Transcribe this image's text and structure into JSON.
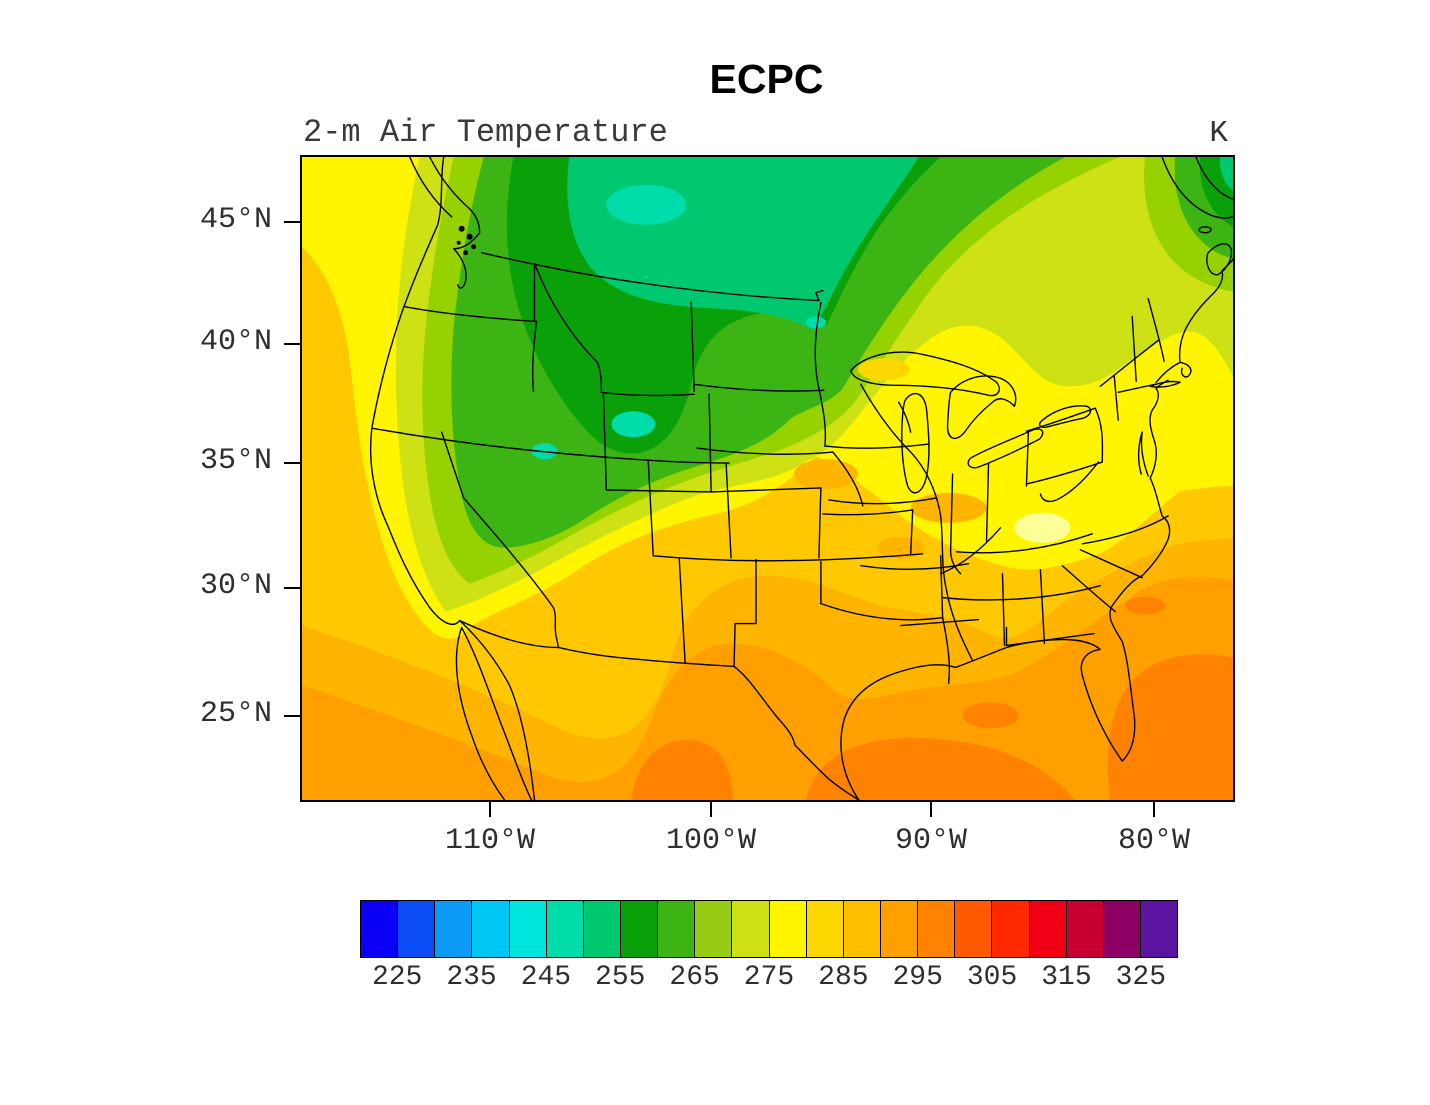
{
  "title": "ECPC",
  "subtitle": "2-m Air Temperature",
  "units_label": "K",
  "axes": {
    "y_ticks": [
      "45°N",
      "40°N",
      "35°N",
      "30°N",
      "25°N"
    ],
    "x_ticks": [
      "110°W",
      "100°W",
      "90°W",
      "80°W"
    ]
  },
  "colorbar": {
    "tick_labels": [
      "225",
      "235",
      "245",
      "255",
      "265",
      "275",
      "285",
      "295",
      "305",
      "315",
      "325"
    ],
    "min_value": 220,
    "max_value": 330,
    "interval_K": 5,
    "segment_colors": [
      "#0b00f5",
      "#0b4df5",
      "#0b9af5",
      "#00c8f5",
      "#00e6dc",
      "#00dcaa",
      "#00c86e",
      "#0aa00a",
      "#3cb414",
      "#96cd14",
      "#cde114",
      "#fff500",
      "#ffd700",
      "#ffbe00",
      "#ffa000",
      "#ff8200",
      "#ff5a00",
      "#ff2800",
      "#f00014",
      "#c80032",
      "#8c0064",
      "#5a14a0"
    ]
  },
  "chart_data": {
    "type": "heatmap",
    "subtype": "filled-contour-map",
    "title": "ECPC",
    "subtitle": "2-m Air Temperature",
    "units": "K",
    "region": "Continental United States with southern Canada and northern Mexico",
    "lat_ticks_deg_N": [
      45,
      40,
      35,
      30,
      25
    ],
    "lon_ticks_deg_W": [
      110,
      100,
      90,
      80
    ],
    "colorbar_ticks_K": [
      225,
      235,
      245,
      255,
      265,
      275,
      285,
      295,
      305,
      315,
      325
    ],
    "colorbar_range_K": [
      220,
      330
    ],
    "contour_interval_K": 5,
    "legend_position": "bottom",
    "grid": false,
    "approx_regional_values_K": {
      "pacific_ocean_offshore": 287,
      "pacific_northwest_coast": 277,
      "california_coast": 279,
      "great_basin_nevada_utah": 258,
      "utah_cold_spot": 248,
      "idaho_northern_rockies": 255,
      "montana_dakotas": 257,
      "canadian_prairies_core": 252,
      "minnesota": 262,
      "upper_midwest_great_lakes": 272,
      "ohio_valley": 282,
      "southern_plains_kansas": 282,
      "new_mexico_highlands": 277,
      "arizona_desert": 287,
      "texas_central": 292,
      "south_texas_rio_grande": 297,
      "gulf_coast_louisiana": 292,
      "gulf_of_mexico": 297,
      "florida_peninsula": 294,
      "atlantic_southeast_offshore": 297,
      "carolinas_warm_sector": 278,
      "mid_atlantic": 282,
      "new_england": 270,
      "northeast_canada_corner": 258
    }
  }
}
